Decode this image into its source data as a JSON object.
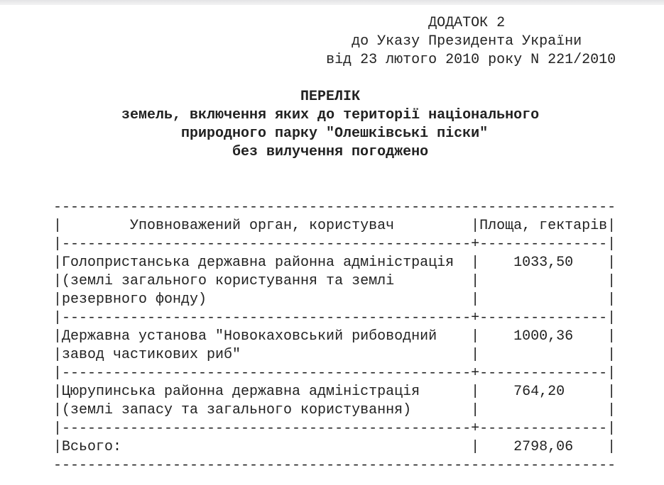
{
  "header": {
    "line1": "ДОДАТОК 2",
    "line2": "до Указу Президента України",
    "line3": "від 23 лютого 2010 року N 221/2010"
  },
  "title": {
    "line1": "ПЕРЕЛІК",
    "line2": "земель, включення яких до території національного",
    "line3": "природного парку \"Олешківські піски\"",
    "line4": "без вилучення погоджено"
  },
  "table": {
    "col1": "Уповноважений орган, користувач",
    "col2": "Площа, гектарів",
    "rows": [
      {
        "lines": [
          "Голопристанська державна районна адміністрація",
          "(землі загального користування та землі",
          "резервного фонду)"
        ],
        "area": "1033,50"
      },
      {
        "lines": [
          "Державна установа \"Новокаховський рибоводний",
          "завод частикових риб\""
        ],
        "area": "1000,36"
      },
      {
        "lines": [
          "Цюрупинська районна державна адміністрація",
          "(землі запасу та загального користування)"
        ],
        "area": "764,20"
      }
    ],
    "total_label": "Всього:",
    "total_area": "2798,06"
  }
}
